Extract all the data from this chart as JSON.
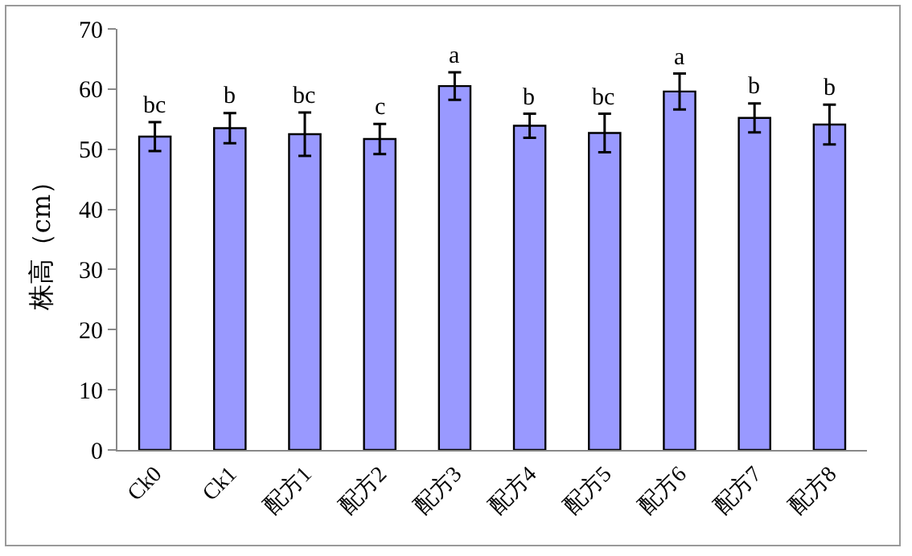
{
  "chart_data": {
    "type": "bar",
    "ylabel": "株高（cm）",
    "categories": [
      "Ck0",
      "Ck1",
      "配方1",
      "配方2",
      "配方3",
      "配方4",
      "配方5",
      "配方6",
      "配方7",
      "配方8"
    ],
    "values": [
      52.1,
      53.5,
      52.5,
      51.7,
      60.5,
      53.9,
      52.7,
      59.6,
      55.2,
      54.1
    ],
    "errors": [
      2.4,
      2.5,
      3.6,
      2.5,
      2.3,
      2.0,
      3.2,
      3.0,
      2.4,
      3.3
    ],
    "color": "#9999ff",
    "ylim": [
      0,
      70
    ],
    "yticks": [
      0,
      10,
      20,
      30,
      40,
      50,
      60,
      70
    ],
    "grid": false,
    "legend": false,
    "annotations": [
      {
        "text": "bc",
        "x": "Ck0",
        "y": 54.5
      },
      {
        "text": "b",
        "x": "Ck1",
        "y": 56.0
      },
      {
        "text": "bc",
        "x": "配方1",
        "y": 56.1
      },
      {
        "text": "c",
        "x": "配方2",
        "y": 54.2
      },
      {
        "text": "a",
        "x": "配方3",
        "y": 62.8
      },
      {
        "text": "b",
        "x": "配方4",
        "y": 55.9
      },
      {
        "text": "bc",
        "x": "配方5",
        "y": 55.9
      },
      {
        "text": "a",
        "x": "配方6",
        "y": 62.6
      },
      {
        "text": "b",
        "x": "配方7",
        "y": 57.6
      },
      {
        "text": "b",
        "x": "配方8",
        "y": 57.4
      }
    ]
  }
}
